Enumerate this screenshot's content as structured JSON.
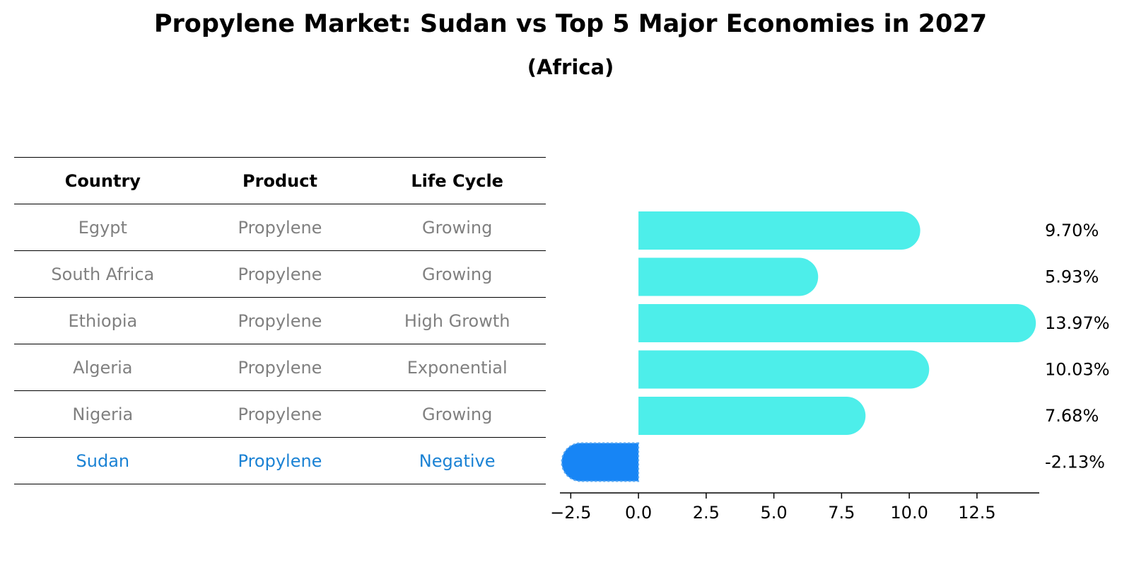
{
  "title": "Propylene Market: Sudan vs Top 5 Major Economies in 2027",
  "subtitle": "(Africa)",
  "table": {
    "headers": [
      "Country",
      "Product",
      "Life Cycle"
    ],
    "rows": [
      [
        "Egypt",
        "Propylene",
        "Growing"
      ],
      [
        "South Africa",
        "Propylene",
        "Growing"
      ],
      [
        "Ethiopia",
        "Propylene",
        "High Growth"
      ],
      [
        "Algeria",
        "Propylene",
        "Exponential"
      ],
      [
        "Nigeria",
        "Propylene",
        "Growing"
      ],
      [
        "Sudan",
        "Propylene",
        "Negative"
      ]
    ],
    "highlight_row": 5
  },
  "colors": {
    "bar": "#4deeea",
    "highlight_bar": "#1785f5",
    "highlight_text": "#1b82d4",
    "muted_text": "#808080"
  },
  "chart_data": {
    "type": "bar",
    "orientation": "horizontal",
    "title": "Propylene Market: Sudan vs Top 5 Major Economies in 2027",
    "subtitle": "(Africa)",
    "categories": [
      "Egypt",
      "South Africa",
      "Ethiopia",
      "Algeria",
      "Nigeria",
      "Sudan"
    ],
    "values": [
      9.7,
      5.93,
      13.97,
      10.03,
      7.68,
      -2.13
    ],
    "value_labels": [
      "9.70%",
      "5.93%",
      "13.97%",
      "10.03%",
      "7.68%",
      "-2.13%"
    ],
    "highlight": "Sudan",
    "xlim": [
      -2.9,
      14.8
    ],
    "xticks": [
      -2.5,
      0.0,
      2.5,
      5.0,
      7.5,
      10.0,
      12.5
    ],
    "xtick_labels": [
      "−2.5",
      "0.0",
      "2.5",
      "5.0",
      "7.5",
      "10.0",
      "12.5"
    ],
    "xlabel": "",
    "ylabel": "",
    "grid": false
  }
}
